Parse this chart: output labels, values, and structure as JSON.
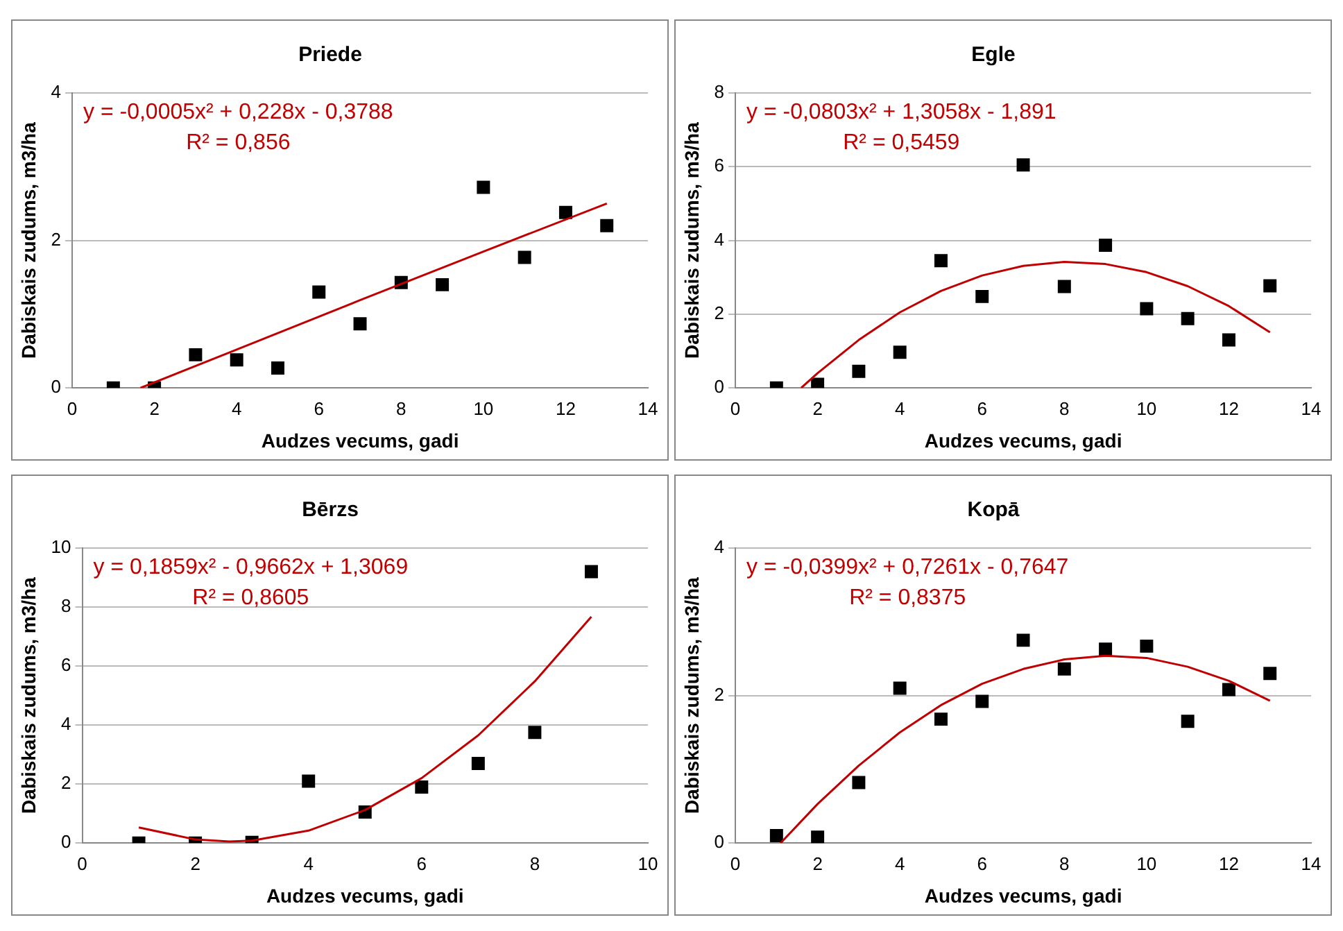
{
  "chart_data": [
    {
      "type": "scatter",
      "title": "Priede",
      "xlabel": "Audzes vecums, gadi",
      "ylabel": "Dabiskais zudums, m3/ha",
      "xlim": [
        0,
        14
      ],
      "xticks": [
        0,
        2,
        4,
        6,
        8,
        10,
        12,
        14
      ],
      "ylim": [
        0,
        4
      ],
      "yticks": [
        0,
        2,
        4
      ],
      "grid": "y",
      "legend": false,
      "marker": "square",
      "annotations": [
        "y = -0,0005x² + 0,228x - 0,3788",
        "R² = 0,856"
      ],
      "series": [
        {
          "color": "#000000",
          "x": [
            1,
            2,
            3,
            4,
            5,
            6,
            7,
            8,
            9,
            10,
            11,
            12,
            13
          ],
          "values": [
            0,
            0,
            0.45,
            0.38,
            0.27,
            1.3,
            0.87,
            1.43,
            1.4,
            2.72,
            1.77,
            2.38,
            2.2
          ]
        },
        {
          "type": "line",
          "color": "#c00000",
          "marker": "none",
          "x": [
            1.66,
            4,
            7,
            10,
            13
          ],
          "values": [
            0,
            0.52,
            1.19,
            1.85,
            2.5
          ]
        }
      ]
    },
    {
      "type": "scatter",
      "title": "Egle",
      "xlabel": "Audzes vecums, gadi",
      "ylabel": "Dabiskais zudums, m3/ha",
      "xlim": [
        0,
        14
      ],
      "xticks": [
        0,
        2,
        4,
        6,
        8,
        10,
        12,
        14
      ],
      "ylim": [
        0,
        8
      ],
      "yticks": [
        0,
        2,
        4,
        6,
        8
      ],
      "grid": "y",
      "legend": false,
      "marker": "square",
      "annotations": [
        "y = -0,0803x² + 1,3058x - 1,891",
        "R² = 0,5459"
      ],
      "series": [
        {
          "color": "#000000",
          "x": [
            1,
            2,
            3,
            4,
            5,
            6,
            7,
            8,
            9,
            10,
            11,
            12,
            13
          ],
          "values": [
            0,
            0.1,
            0.45,
            0.97,
            3.45,
            2.48,
            6.05,
            2.75,
            3.87,
            2.15,
            1.88,
            1.3,
            2.77
          ]
        },
        {
          "type": "line",
          "color": "#c00000",
          "marker": "none",
          "x": [
            1.6,
            2,
            3,
            4,
            5,
            6,
            7,
            8,
            9,
            10,
            11,
            12,
            13
          ],
          "values": [
            0,
            0.4,
            1.3,
            2.05,
            2.63,
            3.05,
            3.31,
            3.42,
            3.36,
            3.14,
            2.76,
            2.22,
            1.51
          ]
        }
      ]
    },
    {
      "type": "scatter",
      "title": "Bērzs",
      "xlabel": "Audzes vecums, gadi",
      "ylabel": "Dabiskais zudums, m3/ha",
      "xlim": [
        0,
        10
      ],
      "xticks": [
        0,
        2,
        4,
        6,
        8,
        10
      ],
      "ylim": [
        0,
        10
      ],
      "yticks": [
        0,
        2,
        4,
        6,
        8,
        10
      ],
      "grid": "y",
      "legend": false,
      "marker": "square",
      "annotations": [
        "y = 0,1859x² - 0,9662x + 1,3069",
        "R² = 0,8605"
      ],
      "series": [
        {
          "color": "#000000",
          "x": [
            1,
            2,
            3,
            4,
            5,
            6,
            7,
            8,
            9
          ],
          "values": [
            0,
            0,
            0.02,
            2.1,
            1.05,
            1.9,
            2.7,
            3.75,
            9.2
          ]
        },
        {
          "type": "line",
          "color": "#c00000",
          "marker": "none",
          "x": [
            1,
            2,
            2.6,
            3,
            4,
            5,
            6,
            7,
            8,
            9
          ],
          "values": [
            0.53,
            0.12,
            0.05,
            0.08,
            0.42,
            1.12,
            2.2,
            3.65,
            5.48,
            7.67
          ]
        }
      ]
    },
    {
      "type": "scatter",
      "title": "Kopā",
      "xlabel": "Audzes vecums, gadi",
      "ylabel": "Dabiskais zudums, m3/ha",
      "xlim": [
        0,
        14
      ],
      "xticks": [
        0,
        2,
        4,
        6,
        8,
        10,
        12,
        14
      ],
      "ylim": [
        0,
        4
      ],
      "yticks": [
        0,
        2,
        4
      ],
      "grid": "y",
      "legend": false,
      "marker": "square",
      "annotations": [
        "y = -0,0399x² + 0,7261x - 0,7647",
        "R² = 0,8375"
      ],
      "series": [
        {
          "color": "#000000",
          "x": [
            1,
            2,
            3,
            4,
            5,
            6,
            7,
            8,
            9,
            10,
            11,
            12,
            13
          ],
          "values": [
            0.1,
            0.08,
            0.82,
            2.1,
            1.68,
            1.92,
            2.75,
            2.36,
            2.63,
            2.67,
            1.65,
            2.08,
            2.3
          ]
        },
        {
          "type": "line",
          "color": "#c00000",
          "marker": "none",
          "x": [
            1.1,
            2,
            3,
            4,
            5,
            6,
            7,
            8,
            9,
            10,
            11,
            12,
            13
          ],
          "values": [
            0,
            0.53,
            1.05,
            1.5,
            1.87,
            2.16,
            2.36,
            2.49,
            2.54,
            2.51,
            2.39,
            2.2,
            1.93
          ]
        }
      ]
    }
  ]
}
